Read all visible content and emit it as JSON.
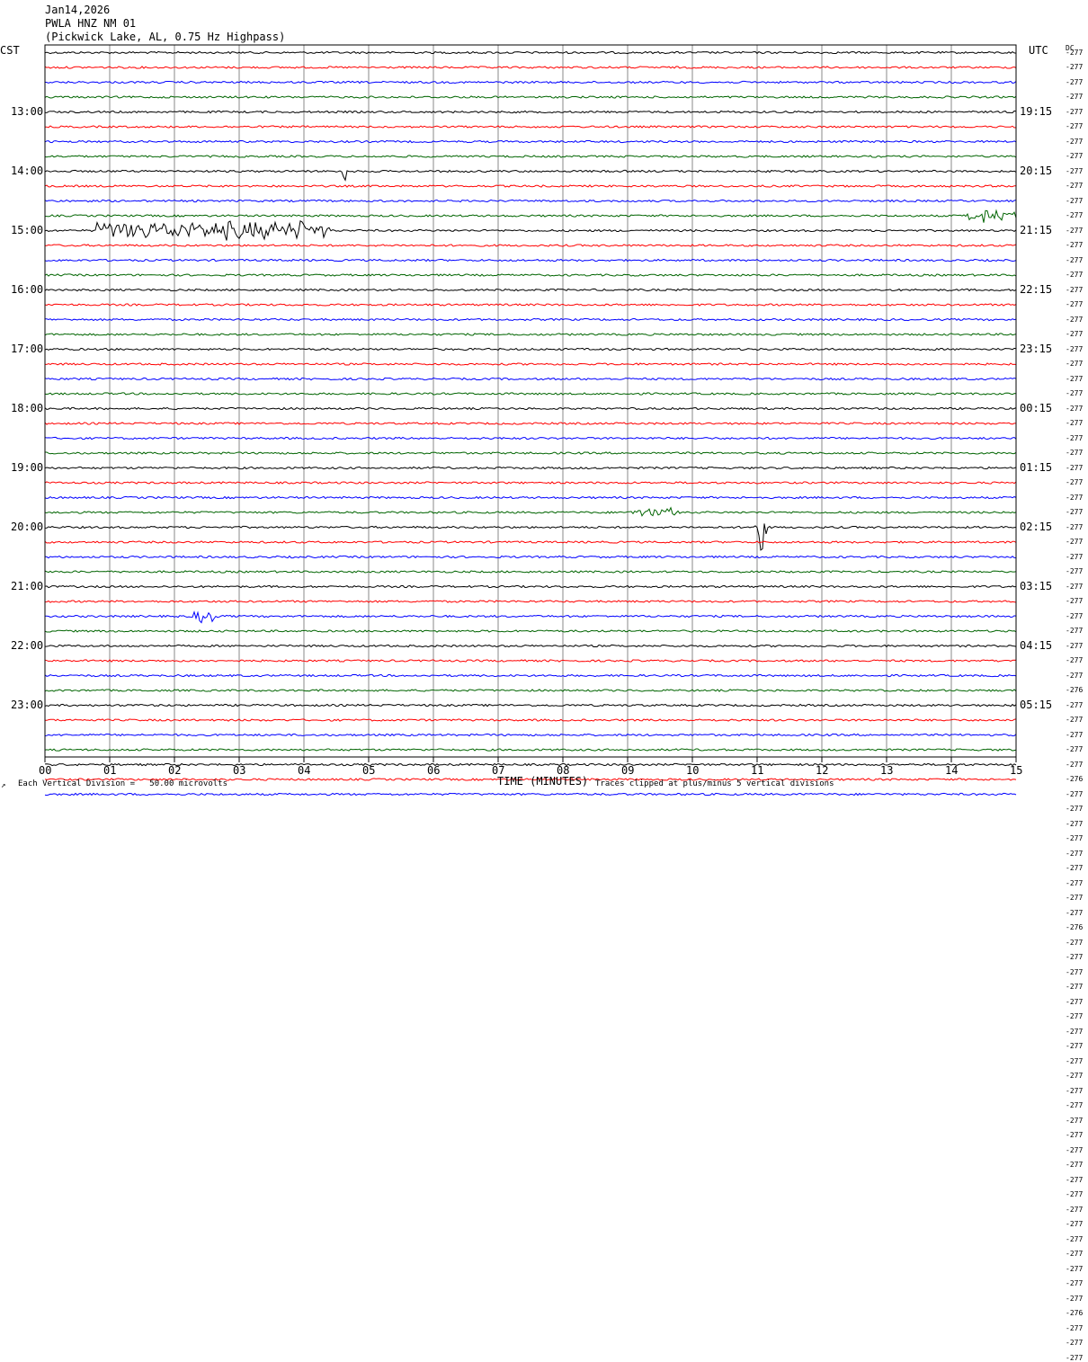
{
  "header": {
    "date": "Jan14,2026",
    "station": "PWLA HNZ NM 01",
    "location": "(Pickwick Lake, AL, 0.75 Hz Highpass)"
  },
  "left_timezone": "CST",
  "right_timezone": "UTC",
  "dc_label": "DC",
  "footer": {
    "scale_note": "Each Vertical Division =   50.00 microvolts",
    "clip_note": "Traces clipped at plus/minus 5 vertical divisions",
    "corner_mark": "↗"
  },
  "colors": {
    "trace_cycle": [
      "#000000",
      "#ff0000",
      "#0000ff",
      "#006400"
    ],
    "grid": "#888888"
  },
  "chart_data": {
    "type": "line",
    "title": "PWLA HNZ NM 01 (Pickwick Lake, AL, 0.75 Hz Highpass)",
    "xlabel": "TIME (MINUTES)",
    "ylabel": "",
    "x_ticks": [
      "00",
      "01",
      "02",
      "03",
      "04",
      "05",
      "06",
      "07",
      "08",
      "09",
      "10",
      "11",
      "12",
      "13",
      "14",
      "15"
    ],
    "xlim": [
      0,
      15
    ],
    "grid": true,
    "rows_per_hour": 4,
    "left_hour_labels": [
      "13:00",
      "14:00",
      "15:00",
      "16:00",
      "17:00",
      "18:00",
      "19:00",
      "20:00",
      "21:00",
      "22:00",
      "23:00"
    ],
    "right_hour_labels": [
      "19:15",
      "20:15",
      "21:15",
      "22:15",
      "23:15",
      "00:15",
      "01:15",
      "02:15",
      "03:15",
      "04:15",
      "05:15"
    ],
    "dc_offsets": [
      "-277",
      "-277",
      "-277",
      "-277",
      "-277",
      "-277",
      "-277",
      "-277",
      "-277",
      "-277",
      "-277",
      "-277",
      "-277",
      "-277",
      "-277",
      "-277",
      "-277",
      "-277",
      "-277",
      "-277",
      "-277",
      "-277",
      "-277",
      "-277",
      "-277",
      "-277",
      "-277",
      "-277",
      "-277",
      "-277",
      "-277",
      "-277",
      "-277",
      "-277",
      "-277",
      "-277",
      "-277",
      "-277",
      "-277",
      "-277",
      "-277",
      "-277",
      "-277",
      "-276",
      "-277",
      "-277",
      "-277",
      "-277",
      "-277",
      "-276",
      "-277",
      "-277",
      "-277",
      "-277",
      "-277",
      "-277",
      "-277",
      "-277",
      "-277",
      "-276",
      "-277",
      "-277",
      "-277",
      "-277",
      "-277",
      "-277",
      "-277",
      "-277",
      "-277",
      "-277",
      "-277",
      "-277",
      "-277",
      "-277",
      "-277",
      "-277",
      "-277",
      "-277",
      "-277",
      "-277",
      "-277",
      "-277",
      "-277",
      "-277",
      "-277",
      "-276",
      "-277",
      "-277",
      "-277"
    ],
    "events": [
      {
        "row": 12,
        "start": 0.8,
        "end": 4.4,
        "amplitude": 12
      },
      {
        "row": 11,
        "start": 14.2,
        "end": 15.0,
        "amplitude": 8
      },
      {
        "row": 32,
        "start": 10.95,
        "end": 11.15,
        "amplitude": 28
      },
      {
        "row": 31,
        "start": 9.05,
        "end": 9.8,
        "amplitude": 6
      },
      {
        "row": 38,
        "start": 2.3,
        "end": 2.7,
        "amplitude": 8
      },
      {
        "row": 8,
        "start": 4.6,
        "end": 4.65,
        "amplitude": 14
      }
    ]
  }
}
